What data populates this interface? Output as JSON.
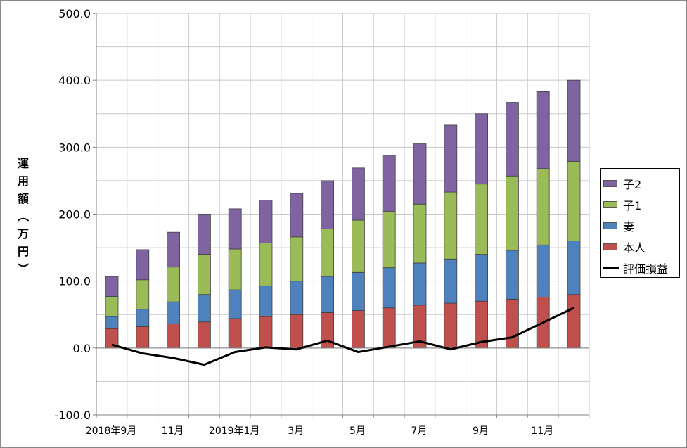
{
  "chart_data": {
    "type": "bar",
    "stacked": true,
    "title": "",
    "ylabel": "運用額（万円）",
    "xlabel": "",
    "ylim": [
      -100,
      500
    ],
    "yticks": [
      "500.0",
      "400.0",
      "300.0",
      "200.0",
      "100.0",
      "0.0",
      "-100.0"
    ],
    "ytick_values": [
      500,
      400,
      300,
      200,
      100,
      0,
      -100
    ],
    "x_tick_labels": [
      {
        "index": 0,
        "label": "2018年9月"
      },
      {
        "index": 2,
        "label": "11月"
      },
      {
        "index": 4,
        "label": "2019年1月"
      },
      {
        "index": 6,
        "label": "3月"
      },
      {
        "index": 8,
        "label": "5月"
      },
      {
        "index": 10,
        "label": "7月"
      },
      {
        "index": 12,
        "label": "9月"
      },
      {
        "index": 14,
        "label": "11月"
      }
    ],
    "periods": 16,
    "grid": true,
    "legend_position": "right",
    "series": [
      {
        "name": "本人",
        "color": "#c0504d",
        "values": [
          29,
          32,
          36,
          39,
          44,
          47,
          50,
          53,
          56,
          60,
          64,
          67,
          70,
          73,
          76,
          80
        ]
      },
      {
        "name": "妻",
        "color": "#4f81bd",
        "values": [
          18,
          26,
          33,
          41,
          43,
          46,
          50,
          54,
          57,
          60,
          63,
          66,
          70,
          73,
          78,
          80
        ]
      },
      {
        "name": "子1",
        "color": "#9bbb59",
        "values": [
          30,
          44,
          52,
          60,
          61,
          64,
          66,
          71,
          78,
          84,
          88,
          100,
          105,
          111,
          114,
          119
        ]
      },
      {
        "name": "子2",
        "color": "#8064a2",
        "values": [
          30,
          45,
          52,
          60,
          60,
          64,
          65,
          72,
          78,
          84,
          90,
          100,
          105,
          110,
          115,
          121
        ]
      }
    ],
    "line_series": {
      "name": "評価損益",
      "color": "#000000",
      "values": [
        5,
        -8,
        -15,
        -25,
        -6,
        1,
        -2,
        11,
        -6,
        2,
        10,
        -2,
        9,
        16,
        38,
        60
      ]
    }
  }
}
